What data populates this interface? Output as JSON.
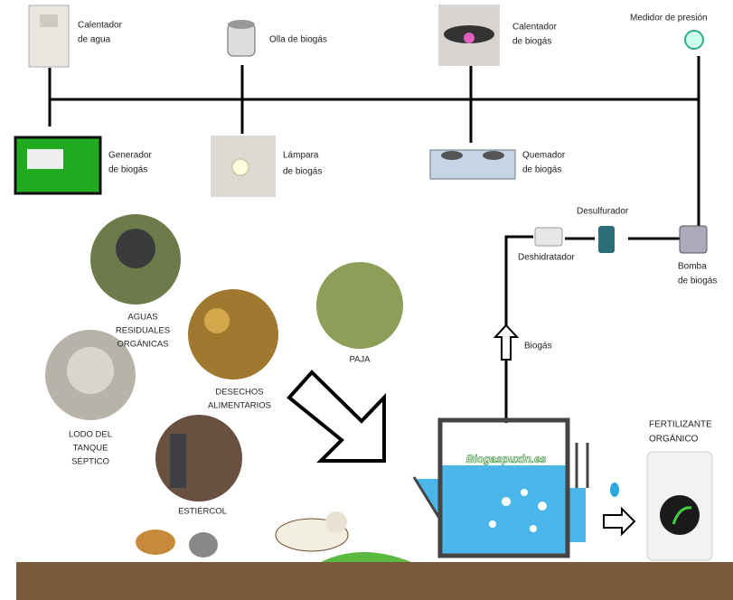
{
  "appliances": [
    {
      "lines": [
        "Calentador",
        "de agua"
      ]
    },
    {
      "lines": [
        "Olla de biogás"
      ]
    },
    {
      "lines": [
        "Calentador",
        "de biogás"
      ]
    },
    {
      "lines": [
        "Medidor de presión"
      ]
    },
    {
      "lines": [
        "Generador",
        "de biogás"
      ]
    },
    {
      "lines": [
        "Lámpara",
        "de biogás"
      ]
    },
    {
      "lines": [
        "Quemador",
        "de biogás"
      ]
    }
  ],
  "gas_line": {
    "desulfurizer": "Desulfurador",
    "dehydrator": "Deshidratador",
    "pump": [
      "Bomba",
      "de biogás"
    ],
    "flow_label": "Biogás"
  },
  "inputs": [
    {
      "lines": [
        "AGUAS",
        "RESIDUALES",
        "ORGÁNICAS"
      ]
    },
    {
      "lines": [
        "DESECHOS",
        "ALIMENTARIOS"
      ]
    },
    {
      "lines": [
        "PAJA"
      ]
    },
    {
      "lines": [
        "LODO DEL",
        "TANQUE",
        "SÉPTICO"
      ]
    },
    {
      "lines": [
        "ESTIÉRCOL"
      ]
    }
  ],
  "digester": {
    "watermark": "Biogaspuxin.es"
  },
  "output": {
    "lines": [
      "FERTILIZANTE",
      "ORGÁNICO"
    ]
  }
}
